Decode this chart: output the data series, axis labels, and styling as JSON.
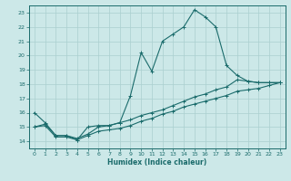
{
  "xlabel": "Humidex (Indice chaleur)",
  "ylabel": "",
  "background_color": "#cce8e8",
  "line_color": "#1a6b6b",
  "grid_color": "#aacfcf",
  "xlim": [
    -0.5,
    23.5
  ],
  "ylim": [
    13.5,
    23.5
  ],
  "xticks": [
    0,
    1,
    2,
    3,
    4,
    5,
    6,
    7,
    8,
    9,
    10,
    11,
    12,
    13,
    14,
    15,
    16,
    17,
    18,
    19,
    20,
    21,
    22,
    23
  ],
  "yticks": [
    14,
    15,
    16,
    17,
    18,
    19,
    20,
    21,
    22,
    23
  ],
  "line1_x": [
    0,
    1,
    2,
    3,
    4,
    5,
    6,
    7,
    8,
    9,
    10,
    11,
    12,
    13,
    14,
    15,
    16,
    17,
    18,
    19,
    20,
    21,
    22,
    23
  ],
  "line1_y": [
    16.0,
    15.3,
    14.4,
    14.4,
    14.1,
    15.0,
    15.1,
    15.1,
    15.3,
    17.2,
    20.2,
    18.9,
    21.0,
    21.5,
    22.0,
    23.2,
    22.7,
    22.0,
    19.3,
    18.6,
    18.2,
    18.1,
    18.1,
    18.1
  ],
  "line2_x": [
    0,
    1,
    2,
    3,
    4,
    5,
    6,
    7,
    8,
    9,
    10,
    11,
    12,
    13,
    14,
    15,
    16,
    17,
    18,
    19,
    20,
    21,
    22,
    23
  ],
  "line2_y": [
    15.0,
    15.2,
    14.4,
    14.4,
    14.2,
    14.5,
    15.0,
    15.1,
    15.3,
    15.5,
    15.8,
    16.0,
    16.2,
    16.5,
    16.8,
    17.1,
    17.3,
    17.6,
    17.8,
    18.3,
    18.2,
    18.1,
    18.1,
    18.1
  ],
  "line3_x": [
    0,
    1,
    2,
    3,
    4,
    5,
    6,
    7,
    8,
    9,
    10,
    11,
    12,
    13,
    14,
    15,
    16,
    17,
    18,
    19,
    20,
    21,
    22,
    23
  ],
  "line3_y": [
    15.0,
    15.1,
    14.3,
    14.3,
    14.1,
    14.4,
    14.7,
    14.8,
    14.9,
    15.1,
    15.4,
    15.6,
    15.9,
    16.1,
    16.4,
    16.6,
    16.8,
    17.0,
    17.2,
    17.5,
    17.6,
    17.7,
    17.9,
    18.1
  ]
}
